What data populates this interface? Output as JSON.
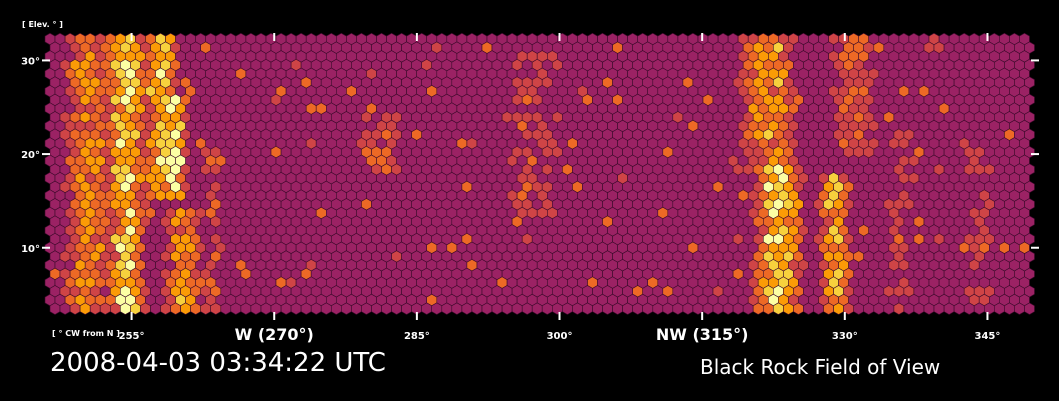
{
  "timestamp": "2008-04-03 03:34:22 UTC",
  "field_of_view": "Black Rock Field of View",
  "chart_data": {
    "type": "heatmap",
    "title": "",
    "xlabel": "[ ° CW from N ]",
    "ylabel": "[ Elev. ° ]",
    "xlim": [
      246,
      350
    ],
    "ylim": [
      2.5,
      32.5
    ],
    "x_ticks": [
      {
        "value": 255,
        "label": "255°",
        "major": false
      },
      {
        "value": 270,
        "label": "W (270°)",
        "major": true
      },
      {
        "value": 285,
        "label": "285°",
        "major": false
      },
      {
        "value": 300,
        "label": "300°",
        "major": false
      },
      {
        "value": 315,
        "label": "NW (315°)",
        "major": true
      },
      {
        "value": 330,
        "label": "330°",
        "major": false
      },
      {
        "value": 345,
        "label": "345°",
        "major": false
      }
    ],
    "y_ticks": [
      {
        "value": 10,
        "label": "10°"
      },
      {
        "value": 20,
        "label": "20°"
      },
      {
        "value": 30,
        "label": "30°"
      }
    ],
    "colormap": "inferno",
    "background_color": "#9b2264",
    "colors": {
      "background": "#000000",
      "base_cell": "#9b2264",
      "level_1": "#cf4446",
      "level_2": "#ed6925",
      "level_3": "#fb9b06",
      "level_4": "#f7d13d",
      "level_5": "#fcffa4"
    },
    "bands": [
      {
        "azimuth": 250.5,
        "elev_range": [
          3,
          32
        ],
        "width": 2.6,
        "intensity": 0.55
      },
      {
        "azimuth": 254.5,
        "elev_range": [
          3,
          32
        ],
        "width": 1.8,
        "intensity": 0.9
      },
      {
        "azimuth": 258,
        "elev_range": [
          16,
          32
        ],
        "width": 1.6,
        "intensity": 0.8
      },
      {
        "azimuth": 259.5,
        "elev_range": [
          16,
          26
        ],
        "width": 1.2,
        "intensity": 1.0
      },
      {
        "azimuth": 260.5,
        "elev_range": [
          3,
          14
        ],
        "width": 2.0,
        "intensity": 0.6
      },
      {
        "azimuth": 263.5,
        "elev_range": [
          3,
          20
        ],
        "width": 1.3,
        "intensity": 0.35
      },
      {
        "azimuth": 281,
        "elev_range": [
          18,
          24
        ],
        "width": 2.5,
        "intensity": 0.35
      },
      {
        "azimuth": 297,
        "elev_range": [
          14,
          30
        ],
        "width": 4.0,
        "intensity": 0.3
      },
      {
        "azimuth": 323,
        "elev_range": [
          3,
          18
        ],
        "width": 2.4,
        "intensity": 0.85
      },
      {
        "azimuth": 322,
        "elev_range": [
          18,
          32
        ],
        "width": 3.0,
        "intensity": 0.6
      },
      {
        "azimuth": 329,
        "elev_range": [
          3,
          17
        ],
        "width": 1.6,
        "intensity": 0.7
      },
      {
        "azimuth": 331,
        "elev_range": [
          20,
          32
        ],
        "width": 2.5,
        "intensity": 0.4
      },
      {
        "azimuth": 336,
        "elev_range": [
          3,
          22
        ],
        "width": 2.0,
        "intensity": 0.3
      },
      {
        "azimuth": 344,
        "elev_range": [
          3,
          22
        ],
        "width": 2.5,
        "intensity": 0.25
      }
    ]
  }
}
